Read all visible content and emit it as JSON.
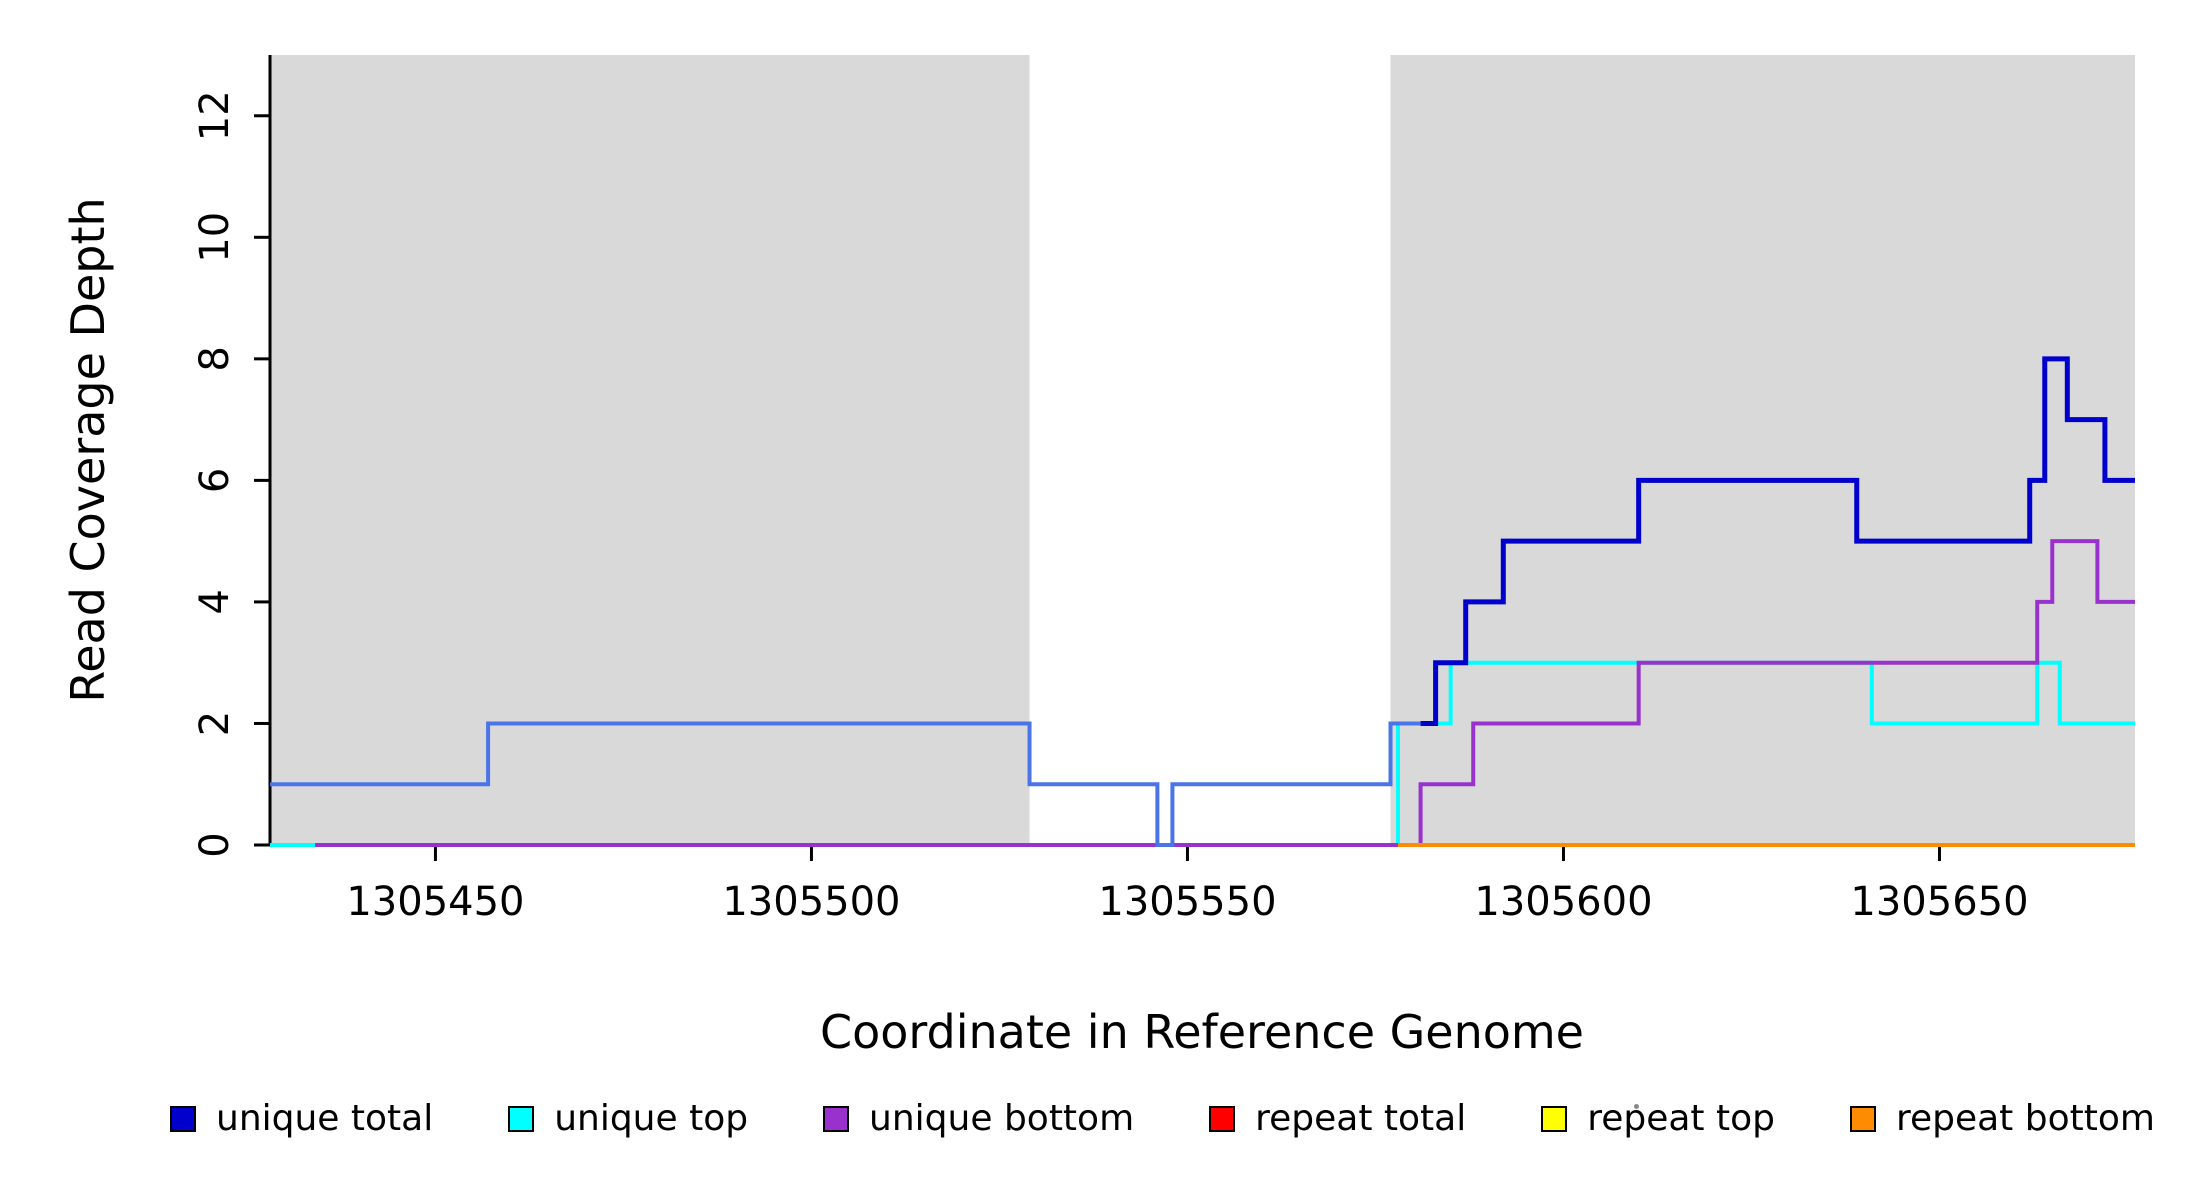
{
  "chart_data": {
    "type": "line",
    "subtype": "step-coverage-plot",
    "title": "",
    "xlabel": "Coordinate in Reference Genome",
    "ylabel": "Read Coverage Depth",
    "xlim": [
      1305428,
      1305676
    ],
    "ylim": [
      0,
      13
    ],
    "xticks": [
      1305450,
      1305500,
      1305550,
      1305600,
      1305650
    ],
    "yticks": [
      0,
      2,
      4,
      6,
      8,
      10,
      12
    ],
    "grid": false,
    "legend_position": "bottom",
    "background_shading": {
      "color": "#d9d9d9",
      "regions": [
        [
          1305428,
          1305529
        ],
        [
          1305577,
          1305676
        ]
      ]
    },
    "series": [
      {
        "name": "unique top",
        "color": "#00ffff",
        "width": 4,
        "points": [
          [
            1305428,
            0
          ],
          [
            1305578,
            0
          ],
          [
            1305578,
            2
          ],
          [
            1305585,
            2
          ],
          [
            1305585,
            3
          ],
          [
            1305641,
            3
          ],
          [
            1305641,
            2
          ],
          [
            1305663,
            2
          ],
          [
            1305663,
            3
          ],
          [
            1305666,
            3
          ],
          [
            1305666,
            2
          ],
          [
            1305676,
            2
          ]
        ]
      },
      {
        "name": "unique bottom",
        "color": "#9932cc",
        "width": 4,
        "points": [
          [
            1305434,
            0
          ],
          [
            1305581,
            0
          ],
          [
            1305581,
            1
          ],
          [
            1305588,
            1
          ],
          [
            1305588,
            2
          ],
          [
            1305610,
            2
          ],
          [
            1305610,
            3
          ],
          [
            1305663,
            3
          ],
          [
            1305663,
            4
          ],
          [
            1305665,
            4
          ],
          [
            1305665,
            5
          ],
          [
            1305671,
            5
          ],
          [
            1305671,
            4
          ],
          [
            1305676,
            4
          ]
        ]
      },
      {
        "name": "repeat total",
        "color": "#ff0000",
        "width": 4,
        "points": [
          [
            1305578,
            0
          ],
          [
            1305676,
            0
          ]
        ]
      },
      {
        "name": "repeat top",
        "color": "#ffff00",
        "width": 4,
        "points": [
          [
            1305578,
            0
          ],
          [
            1305676,
            0
          ]
        ]
      },
      {
        "name": "repeat bottom",
        "color": "#ff8c00",
        "width": 4,
        "points": [
          [
            1305578,
            0
          ],
          [
            1305676,
            0
          ]
        ]
      },
      {
        "name": "unique total (left light-blue segment)",
        "color": "#4a74e8",
        "width": 4,
        "points": [
          [
            1305428,
            1
          ],
          [
            1305457,
            1
          ],
          [
            1305457,
            2
          ],
          [
            1305529,
            2
          ],
          [
            1305529,
            1
          ],
          [
            1305546,
            1
          ],
          [
            1305546,
            0
          ],
          [
            1305548,
            0
          ],
          [
            1305548,
            1
          ],
          [
            1305577,
            1
          ],
          [
            1305577,
            2
          ],
          [
            1305581,
            2
          ]
        ]
      },
      {
        "name": "unique total",
        "color": "#0000cd",
        "width": 5,
        "points": [
          [
            1305581,
            2
          ],
          [
            1305583,
            2
          ],
          [
            1305583,
            3
          ],
          [
            1305587,
            3
          ],
          [
            1305587,
            4
          ],
          [
            1305592,
            4
          ],
          [
            1305592,
            5
          ],
          [
            1305610,
            5
          ],
          [
            1305610,
            6
          ],
          [
            1305639,
            6
          ],
          [
            1305639,
            5
          ],
          [
            1305662,
            5
          ],
          [
            1305662,
            6
          ],
          [
            1305664,
            6
          ],
          [
            1305664,
            8
          ],
          [
            1305667,
            8
          ],
          [
            1305667,
            7
          ],
          [
            1305672,
            7
          ],
          [
            1305672,
            6
          ],
          [
            1305676,
            6
          ]
        ]
      }
    ],
    "legend": [
      {
        "label": "unique total",
        "color": "#0000cd"
      },
      {
        "label": "unique top",
        "color": "#00ffff"
      },
      {
        "label": "unique bottom",
        "color": "#9932cc"
      },
      {
        "label": "repeat total",
        "color": "#ff0000"
      },
      {
        "label": "repeat top",
        "color": "#ffff00"
      },
      {
        "label": "repeat bottom",
        "color": "#ff8c00"
      }
    ]
  }
}
